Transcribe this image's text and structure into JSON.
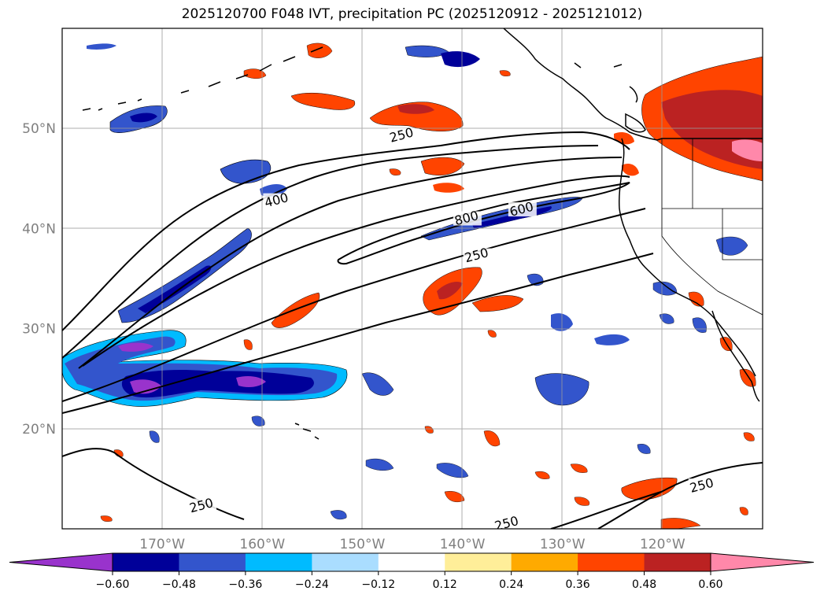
{
  "title": "2025120700 F048 IVT, precipitation PC (2025120912 - 2025121012)",
  "map": {
    "lon_range": [
      -180,
      -110
    ],
    "lat_range": [
      10,
      60
    ],
    "lat_ticks": [
      {
        "value": 50,
        "label": "50°N"
      },
      {
        "value": 40,
        "label": "40°N"
      },
      {
        "value": 30,
        "label": "30°N"
      },
      {
        "value": 20,
        "label": "20°N"
      }
    ],
    "lon_ticks": [
      {
        "value": -170,
        "label": "170°W"
      },
      {
        "value": -160,
        "label": "160°W"
      },
      {
        "value": -150,
        "label": "150°W"
      },
      {
        "value": -140,
        "label": "140°W"
      },
      {
        "value": -130,
        "label": "130°W"
      },
      {
        "value": -120,
        "label": "120°W"
      }
    ],
    "grid": true,
    "ivt_contour_labels": [
      {
        "text": "250",
        "lon": -146,
        "lat": 49
      },
      {
        "text": "400",
        "lon": -158.5,
        "lat": 42.5
      },
      {
        "text": "800",
        "lon": -139.5,
        "lat": 40.7
      },
      {
        "text": "600",
        "lon": -134,
        "lat": 41.6
      },
      {
        "text": "250",
        "lon": -138.5,
        "lat": 37
      },
      {
        "text": "250",
        "lon": -166,
        "lat": 12
      },
      {
        "text": "250",
        "lon": -116,
        "lat": 14
      },
      {
        "text": "250",
        "lon": -135.5,
        "lat": 10.2
      }
    ]
  },
  "colorbar": {
    "colors": [
      "#9933cc",
      "#000099",
      "#3355cc",
      "#00bbff",
      "#aaddff",
      "#ffffff",
      "#ffee99",
      "#ffaa00",
      "#ff4400",
      "#bb2222",
      "#ff88aa"
    ],
    "ticks": [
      "−0.60",
      "−0.48",
      "−0.36",
      "−0.24",
      "−0.12",
      "0.12",
      "0.24",
      "0.36",
      "0.48",
      "0.60"
    ]
  }
}
